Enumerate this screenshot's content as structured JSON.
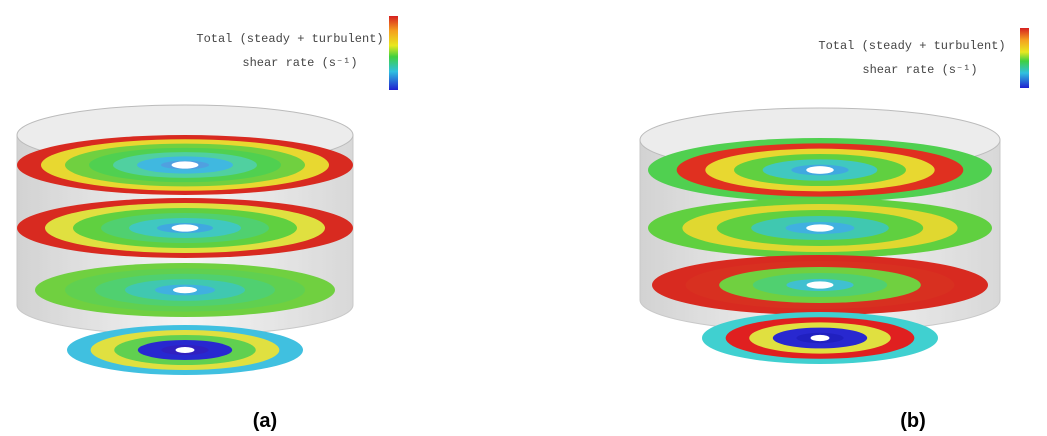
{
  "panels": [
    {
      "label": "(a)",
      "legend_title": [
        "Total (steady + turbulent)",
        "shear rate (s⁻¹)"
      ]
    },
    {
      "label": "(b)",
      "legend_title": [
        "Total (steady + turbulent)",
        "shear rate (s⁻¹)"
      ]
    }
  ]
}
